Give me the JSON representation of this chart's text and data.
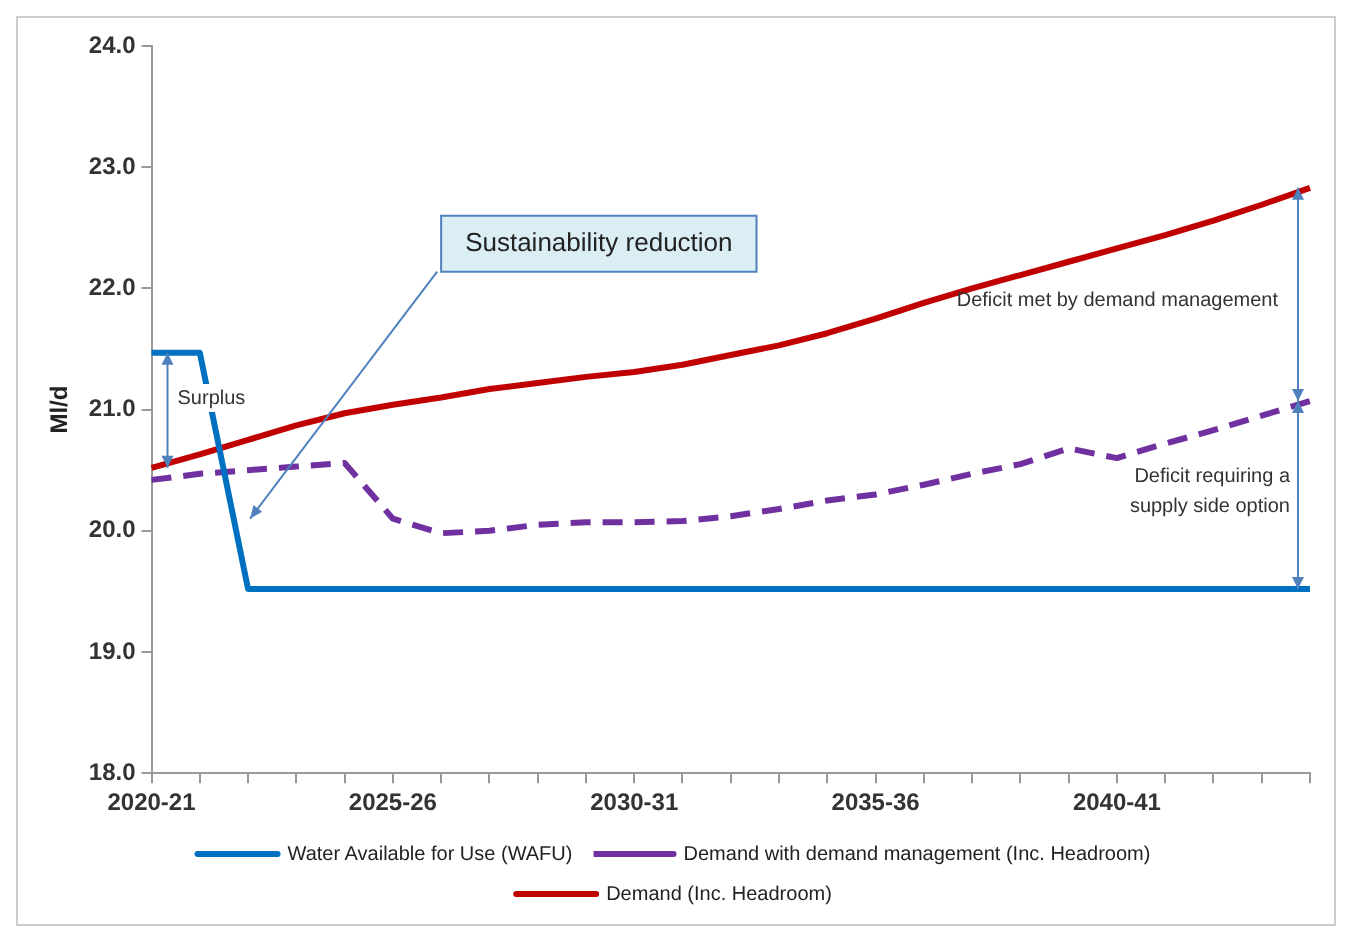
{
  "chart_data": {
    "type": "line",
    "ylabel": "Ml/d",
    "categories": [
      "2020-21",
      null,
      null,
      null,
      null,
      "2025-26",
      null,
      null,
      null,
      null,
      "2030-31",
      null,
      null,
      null,
      null,
      "2035-36",
      null,
      null,
      null,
      null,
      "2040-41",
      null,
      null,
      null,
      null
    ],
    "series": [
      {
        "name": "Water Available for Use (WAFU)",
        "color": "#0070c0",
        "line_style": "solid",
        "values": [
          21.47,
          21.47,
          19.52,
          19.52,
          19.52,
          19.52,
          19.52,
          19.52,
          19.52,
          19.52,
          19.52,
          19.52,
          19.52,
          19.52,
          19.52,
          19.52,
          19.52,
          19.52,
          19.52,
          19.52,
          19.52,
          19.52,
          19.52,
          19.52,
          19.52
        ]
      },
      {
        "name": "Demand with demand management (Inc. Headroom)",
        "color": "#7030a0",
        "line_style": "dashed",
        "values": [
          20.42,
          20.47,
          20.5,
          20.53,
          20.56,
          20.1,
          19.98,
          20.0,
          20.05,
          20.07,
          20.07,
          20.08,
          20.12,
          20.18,
          20.25,
          20.3,
          20.38,
          20.47,
          20.55,
          20.68,
          20.6,
          20.72,
          20.83,
          20.95,
          21.07
        ]
      },
      {
        "name": "Demand (Inc. Headroom)",
        "color": "#c00000",
        "line_style": "solid",
        "values": [
          20.52,
          20.63,
          20.75,
          20.87,
          20.97,
          21.04,
          21.1,
          21.17,
          21.22,
          21.27,
          21.31,
          21.37,
          21.45,
          21.53,
          21.63,
          21.75,
          21.88,
          22.0,
          22.11,
          22.22,
          22.33,
          22.44,
          22.56,
          22.69,
          22.83
        ]
      }
    ],
    "ylim": [
      18,
      24
    ],
    "yticks": [
      {
        "value": 18,
        "label": "18.0"
      },
      {
        "value": 19,
        "label": "19.0"
      },
      {
        "value": 20,
        "label": "20.0"
      },
      {
        "value": 21,
        "label": "21.0"
      },
      {
        "value": 22,
        "label": "22.0"
      },
      {
        "value": 23,
        "label": "23.0"
      },
      {
        "value": 24,
        "label": "24.0"
      }
    ],
    "grid": false,
    "legend": "bottom",
    "marker": "none",
    "annotations": [
      "Sustainability reduction",
      "Surplus",
      "Deficit met by demand management",
      "Deficit requiring a supply side option"
    ]
  }
}
